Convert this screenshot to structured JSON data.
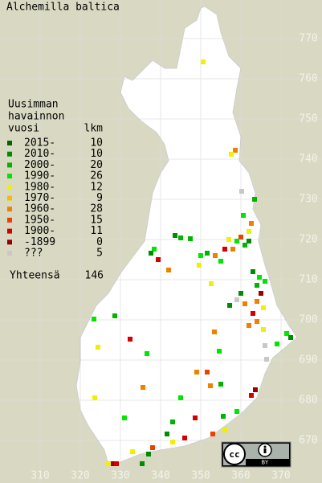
{
  "map": {
    "title": "Alchemilla baltica",
    "legend_title": [
      "Uusimman",
      "havainnon",
      "vuosi"
    ],
    "count_header": "lkm",
    "legend": [
      {
        "label": "2015-",
        "count": 10,
        "color": "#006400"
      },
      {
        "label": "2010-",
        "count": 10,
        "color": "#008c00"
      },
      {
        "label": "2000-",
        "count": 20,
        "color": "#00b400"
      },
      {
        "label": "1990-",
        "count": 26,
        "color": "#00e600"
      },
      {
        "label": "1980-",
        "count": 12,
        "color": "#f0f000"
      },
      {
        "label": "1970-",
        "count": 9,
        "color": "#f0c000"
      },
      {
        "label": "1960-",
        "count": 28,
        "color": "#f08000"
      },
      {
        "label": "1950-",
        "count": 15,
        "color": "#f04000"
      },
      {
        "label": "1900-",
        "count": 11,
        "color": "#d40000"
      },
      {
        "label": "-1899",
        "count": 0,
        "color": "#960000"
      },
      {
        "label": "???",
        "count": 5,
        "color": "#c8c8c8"
      }
    ],
    "total_label": "Yhteensä",
    "total": 146,
    "xlim": [
      300,
      380.2
    ],
    "ylim": [
      659.4,
      779.6
    ],
    "xticks": [
      310,
      320,
      330,
      340,
      350,
      360,
      370
    ],
    "yticks": [
      670,
      680,
      690,
      700,
      710,
      720,
      730,
      740,
      750,
      760,
      770
    ],
    "license": "BY",
    "points": [
      [
        350.6,
        764.2,
        4
      ],
      [
        358.6,
        742.2,
        6
      ],
      [
        357.6,
        741.2,
        4
      ],
      [
        360.2,
        732,
        10
      ],
      [
        363.4,
        730,
        2
      ],
      [
        362.6,
        724,
        6
      ],
      [
        360.6,
        726,
        3
      ],
      [
        362,
        722,
        4
      ],
      [
        360,
        720.6,
        7
      ],
      [
        359,
        719.6,
        3
      ],
      [
        361,
        718.6,
        2
      ],
      [
        357,
        720,
        4
      ],
      [
        358,
        717.6,
        6
      ],
      [
        362,
        719.6,
        1
      ],
      [
        356,
        717.6,
        8
      ],
      [
        355,
        714.6,
        3
      ],
      [
        343.6,
        721,
        1
      ],
      [
        345,
        720.4,
        2
      ],
      [
        347.4,
        720.2,
        2
      ],
      [
        338.4,
        717.6,
        3
      ],
      [
        337.6,
        716.6,
        1
      ],
      [
        339.4,
        715,
        8
      ],
      [
        342,
        712.4,
        6
      ],
      [
        350,
        716,
        3
      ],
      [
        351.6,
        716.6,
        2
      ],
      [
        353.6,
        716,
        6
      ],
      [
        349.6,
        713.6,
        4
      ],
      [
        363,
        712,
        1
      ],
      [
        364.6,
        710.6,
        3
      ],
      [
        366,
        709.6,
        3
      ],
      [
        364,
        708.6,
        2
      ],
      [
        365,
        706.6,
        9
      ],
      [
        360,
        706.6,
        1
      ],
      [
        359,
        705,
        10
      ],
      [
        361,
        704,
        6
      ],
      [
        364,
        704.6,
        6
      ],
      [
        365.6,
        703,
        4
      ],
      [
        363,
        701.6,
        8
      ],
      [
        364,
        699.6,
        6
      ],
      [
        365.6,
        697.6,
        4
      ],
      [
        362,
        698.6,
        6
      ],
      [
        371.4,
        696.6,
        3
      ],
      [
        372.4,
        695.6,
        1
      ],
      [
        369,
        694,
        3
      ],
      [
        366,
        693.6,
        10
      ],
      [
        357.2,
        703.6,
        1
      ],
      [
        352.6,
        709,
        4
      ],
      [
        353.4,
        697,
        6
      ],
      [
        354.6,
        692.2,
        3
      ],
      [
        328.6,
        701,
        2
      ],
      [
        323.4,
        700.2,
        3
      ],
      [
        332.4,
        695.2,
        8
      ],
      [
        324.4,
        693.2,
        4
      ],
      [
        336.6,
        691.6,
        3
      ],
      [
        366.4,
        690.2,
        10
      ],
      [
        349,
        687,
        6
      ],
      [
        351.6,
        687,
        7
      ],
      [
        352.4,
        683.6,
        6
      ],
      [
        355,
        684,
        2
      ],
      [
        335.6,
        683.2,
        6
      ],
      [
        345,
        680.6,
        3
      ],
      [
        363.6,
        682.6,
        9
      ],
      [
        362.6,
        681.2,
        8
      ],
      [
        359,
        677.2,
        3
      ],
      [
        355.6,
        676,
        2
      ],
      [
        356,
        672.6,
        4
      ],
      [
        353,
        671.6,
        7
      ],
      [
        348.6,
        675.6,
        8
      ],
      [
        343,
        674.6,
        2
      ],
      [
        341.6,
        671.6,
        1
      ],
      [
        343,
        669.6,
        4
      ],
      [
        346,
        670.6,
        8
      ],
      [
        338,
        668.2,
        7
      ],
      [
        337,
        666.6,
        1
      ],
      [
        333,
        667.2,
        4
      ],
      [
        335.4,
        664.2,
        1
      ],
      [
        328,
        664.2,
        9
      ],
      [
        329,
        664.2,
        8
      ],
      [
        327,
        664.2,
        4
      ],
      [
        323.6,
        680.6,
        4
      ],
      [
        331,
        675.6,
        3
      ]
    ]
  }
}
